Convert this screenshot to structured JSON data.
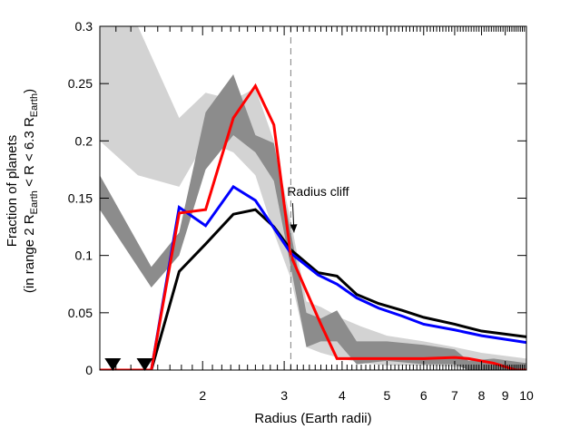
{
  "chart_data": {
    "type": "line",
    "xlabel": "Radius (Earth radii)",
    "ylabel_line1": "Fraction of planets",
    "ylabel_line2": {
      "pre": "(in range 2 R",
      "sub1": "Earth",
      "mid": " < R < 6.3 R",
      "sub2": "Earth",
      "post": ")"
    },
    "xscale": "log",
    "xlim": [
      1.2,
      10
    ],
    "ylim": [
      0,
      0.3
    ],
    "x_ticks": [
      2,
      3,
      4,
      5,
      6,
      7,
      8,
      9,
      10
    ],
    "x_tick_labels": [
      "2",
      "3",
      "4",
      "5",
      "6",
      "7",
      "8",
      "9",
      "10"
    ],
    "y_ticks": [
      0,
      0.05,
      0.1,
      0.15,
      0.2,
      0.25,
      0.3
    ],
    "y_tick_labels": [
      "0",
      "0.05",
      "0.1",
      "0.15",
      "0.2",
      "0.25",
      "0.3"
    ],
    "vline": {
      "x": 3.1,
      "style": "dashed"
    },
    "annotation": {
      "text": "Radius cliff",
      "x_text": 3.55,
      "y_text": 0.152,
      "arrow_to_x": 3.15,
      "arrow_to_y": 0.12
    },
    "markers": [
      {
        "x": 1.28,
        "y": 0.004,
        "shape": "triangle-down"
      },
      {
        "x": 1.5,
        "y": 0.004,
        "shape": "triangle-down"
      }
    ],
    "bands": [
      {
        "color": "#d3d3d3",
        "upper": [
          [
            1.2,
            0.3
          ],
          [
            1.45,
            0.3
          ],
          [
            1.78,
            0.22
          ],
          [
            2.03,
            0.242
          ],
          [
            2.33,
            0.236
          ],
          [
            2.6,
            0.246
          ],
          [
            2.85,
            0.2
          ],
          [
            3.1,
            0.13
          ],
          [
            3.35,
            0.06
          ],
          [
            3.6,
            0.055
          ],
          [
            4.0,
            0.045
          ],
          [
            4.4,
            0.038
          ],
          [
            5.0,
            0.03
          ],
          [
            6.0,
            0.025
          ],
          [
            7.0,
            0.02
          ],
          [
            8.0,
            0.015
          ],
          [
            10.0,
            0.01
          ]
        ],
        "lower": [
          [
            1.2,
            0.2
          ],
          [
            1.45,
            0.17
          ],
          [
            1.78,
            0.16
          ],
          [
            2.03,
            0.2
          ],
          [
            2.33,
            0.19
          ],
          [
            2.6,
            0.17
          ],
          [
            2.85,
            0.12
          ],
          [
            3.1,
            0.08
          ],
          [
            3.35,
            0.02
          ],
          [
            3.6,
            0.015
          ],
          [
            4.0,
            0.01
          ],
          [
            4.4,
            0.006
          ],
          [
            5.0,
            0.004
          ],
          [
            6.0,
            0.004
          ],
          [
            7.0,
            0.003
          ],
          [
            8.0,
            0.002
          ],
          [
            10.0,
            0.002
          ]
        ]
      },
      {
        "color": "#8c8c8c",
        "upper": [
          [
            1.2,
            0.17
          ],
          [
            1.55,
            0.09
          ],
          [
            1.78,
            0.12
          ],
          [
            2.03,
            0.225
          ],
          [
            2.33,
            0.258
          ],
          [
            2.6,
            0.205
          ],
          [
            2.85,
            0.198
          ],
          [
            3.1,
            0.12
          ],
          [
            3.35,
            0.05
          ],
          [
            3.6,
            0.045
          ],
          [
            3.9,
            0.052
          ],
          [
            4.3,
            0.025
          ],
          [
            5.0,
            0.025
          ],
          [
            6.0,
            0.022
          ],
          [
            7.0,
            0.018
          ],
          [
            7.5,
            0.008
          ],
          [
            8.5,
            0.01
          ],
          [
            10.0,
            0.006
          ]
        ],
        "lower": [
          [
            1.2,
            0.14
          ],
          [
            1.55,
            0.072
          ],
          [
            1.78,
            0.1
          ],
          [
            2.03,
            0.175
          ],
          [
            2.33,
            0.205
          ],
          [
            2.6,
            0.19
          ],
          [
            2.85,
            0.165
          ],
          [
            3.1,
            0.09
          ],
          [
            3.35,
            0.02
          ],
          [
            3.6,
            0.025
          ],
          [
            3.9,
            0.025
          ],
          [
            4.3,
            0.005
          ],
          [
            5.0,
            0.008
          ],
          [
            6.0,
            0.005
          ],
          [
            7.0,
            0.005
          ],
          [
            7.5,
            0.0
          ],
          [
            8.5,
            0.0
          ],
          [
            10.0,
            0.0
          ]
        ]
      }
    ],
    "series": [
      {
        "color": "#000000",
        "x": [
          1.2,
          1.55,
          1.78,
          2.03,
          2.33,
          2.6,
          2.85,
          3.1,
          3.55,
          3.9,
          4.3,
          4.8,
          5.4,
          6.0,
          7.0,
          8.0,
          10.0
        ],
        "y": [
          0,
          0,
          0.086,
          0.11,
          0.136,
          0.14,
          0.125,
          0.105,
          0.085,
          0.082,
          0.066,
          0.058,
          0.052,
          0.046,
          0.04,
          0.034,
          0.029
        ]
      },
      {
        "color": "#0000ff",
        "x": [
          1.2,
          1.55,
          1.78,
          2.03,
          2.33,
          2.6,
          2.85,
          3.1,
          3.55,
          3.9,
          4.3,
          4.8,
          5.4,
          6.0,
          7.0,
          8.0,
          10.0
        ],
        "y": [
          0,
          0,
          0.142,
          0.126,
          0.16,
          0.148,
          0.124,
          0.102,
          0.083,
          0.075,
          0.063,
          0.054,
          0.047,
          0.04,
          0.035,
          0.03,
          0.024
        ]
      },
      {
        "color": "#ff0000",
        "x": [
          1.2,
          1.55,
          1.78,
          2.03,
          2.33,
          2.6,
          2.85,
          3.1,
          3.6,
          3.9,
          4.5,
          5.0,
          6.0,
          7.0,
          7.5,
          8.5,
          9.5,
          10.0
        ],
        "y": [
          0,
          0,
          0.137,
          0.14,
          0.22,
          0.248,
          0.214,
          0.1,
          0.04,
          0.01,
          0.01,
          0.01,
          0.01,
          0.011,
          0.01,
          0.006,
          0.0,
          0.0
        ]
      }
    ]
  }
}
